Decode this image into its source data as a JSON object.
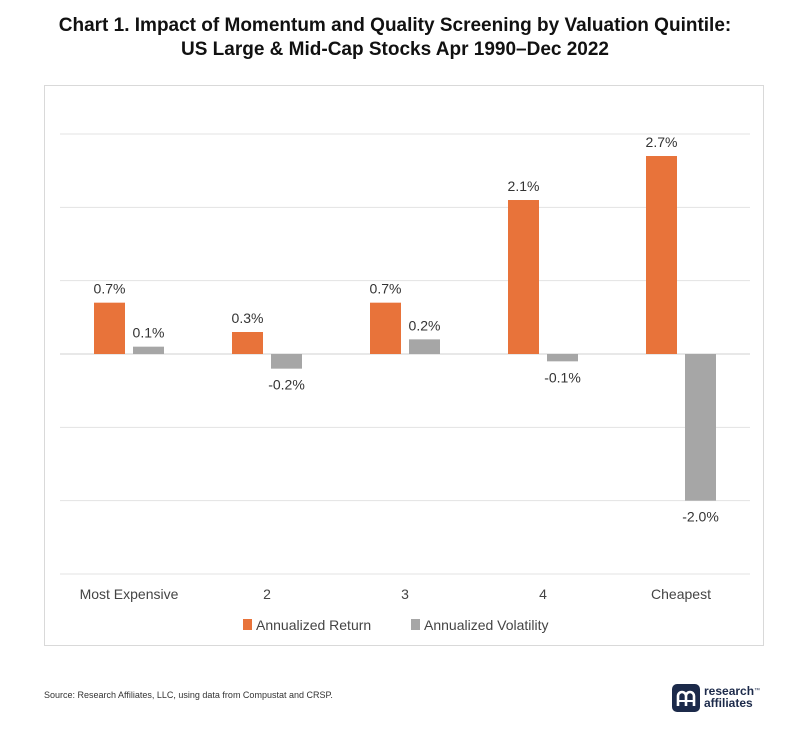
{
  "title_line1": "Chart 1. Impact of Momentum and Quality Screening by Valuation Quintile:",
  "title_line2": "US Large & Mid-Cap Stocks Apr 1990–Dec 2022",
  "source": "Source: Research Affiliates, LLC, using data from Compustat and CRSP.",
  "logo": {
    "line1": "research",
    "line2": "affiliates",
    "tm": "™"
  },
  "colors": {
    "return": "#E8733A",
    "volatility": "#A6A6A6",
    "grid": "#e3e3e3"
  },
  "chart_data": {
    "type": "bar",
    "categories": [
      "Most Expensive",
      "2",
      "3",
      "4",
      "Cheapest"
    ],
    "series": [
      {
        "name": "Annualized Return",
        "values": [
          0.7,
          0.3,
          0.7,
          2.1,
          2.7
        ],
        "labels": [
          "0.7%",
          "0.3%",
          "0.7%",
          "2.1%",
          "2.7%"
        ]
      },
      {
        "name": "Annualized Volatility",
        "values": [
          0.1,
          -0.2,
          0.2,
          -0.1,
          -2.0
        ],
        "labels": [
          "0.1%",
          "-0.2%",
          "0.2%",
          "-0.1%",
          "-2.0%"
        ]
      }
    ],
    "ylim": [
      -3.0,
      3.0
    ],
    "gridlines": [
      -3.0,
      -2.0,
      -1.0,
      0.0,
      1.0,
      2.0,
      3.0
    ],
    "grid": true,
    "legend": "bottom-center"
  }
}
